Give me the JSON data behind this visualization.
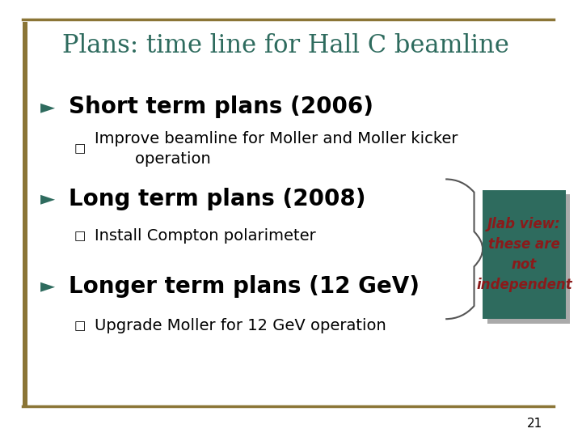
{
  "title": "Plans: time line for Hall C beamline",
  "title_color": "#2e6b5e",
  "background_color": "#ffffff",
  "border_top_color": "#8b7536",
  "border_bottom_color": "#8b7536",
  "left_accent_color": "#8b7536",
  "bullet_color": "#2e6b5e",
  "text_color": "#000000",
  "sections": [
    {
      "heading": "Short term plans (2006)",
      "bullets": [
        "Improve beamline for Moller and Moller kicker\n        operation"
      ]
    },
    {
      "heading": "Long term plans (2008)",
      "bullets": [
        "Install Compton polarimeter"
      ]
    },
    {
      "heading": "Longer term plans (12 GeV)",
      "bullets": [
        "Upgrade Moller for 12 GeV operation"
      ]
    }
  ],
  "callout_box_color": "#2e6b5e",
  "callout_box_text": "Jlab view:\nthese are\nnot\nindependent",
  "callout_text_color": "#8b1a1a",
  "page_number": "21",
  "heading_fontsize": 20,
  "bullet_fontsize": 14,
  "title_fontsize": 22
}
